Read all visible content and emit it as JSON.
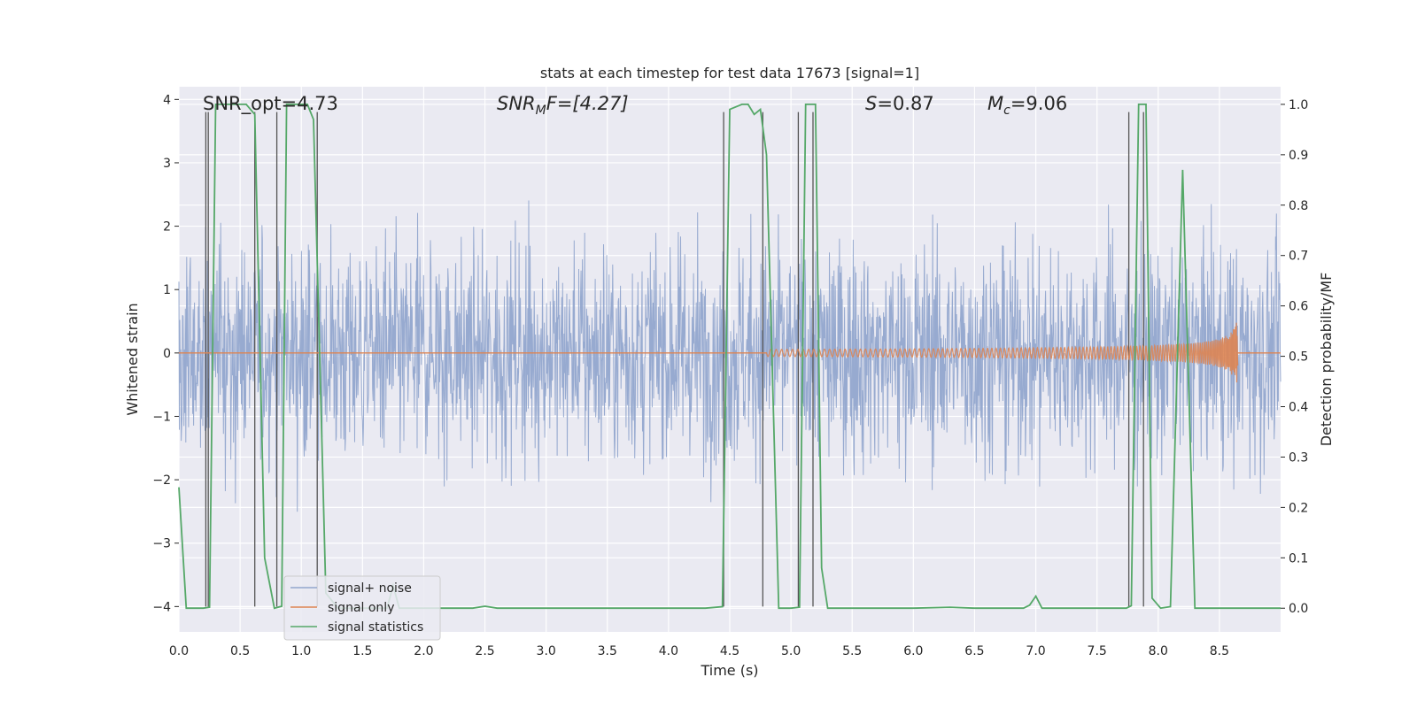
{
  "chart_data": {
    "type": "line",
    "title": "stats at each timestep for test data 17673 [signal=1]",
    "xlabel": "Time (s)",
    "ylabel_left": "Whitened strain",
    "ylabel_right": "Detection probability/MF",
    "xlim": [
      0,
      9.0
    ],
    "ylim_left": [
      -4.4,
      4.2
    ],
    "ylim_right": [
      -0.047,
      1.035
    ],
    "xticks": [
      "0.0",
      "0.5",
      "1.0",
      "1.5",
      "2.0",
      "2.5",
      "3.0",
      "3.5",
      "4.0",
      "4.5",
      "5.0",
      "5.5",
      "6.0",
      "6.5",
      "7.0",
      "7.5",
      "8.0",
      "8.5"
    ],
    "yticks_left": [
      "−4",
      "−3",
      "−2",
      "−1",
      "0",
      "1",
      "2",
      "3",
      "4"
    ],
    "yticks_right": [
      "0.0",
      "0.1",
      "0.2",
      "0.3",
      "0.4",
      "0.5",
      "0.6",
      "0.7",
      "0.8",
      "0.9",
      "1.0"
    ],
    "grid": true,
    "legend_position": "lower-left",
    "annotations": {
      "snr_opt": "SNR_opt=4.73",
      "snr_mf_name": "SNR",
      "snr_mf_sub": "M",
      "snr_mf_rest": "F=[4.27]",
      "s_name": "S",
      "s_rest": "=0.87",
      "mc_name": "M",
      "mc_sub": "c",
      "mc_rest": "=9.06"
    },
    "series": [
      {
        "name": "signal+ noise",
        "color": "#92a6cd",
        "description_axis": "left",
        "band_approx": {
          "typical_amplitude": 1.7,
          "peak_amplitude": 3.9
        }
      },
      {
        "name": "signal only",
        "color": "#dd8452",
        "axis": "left",
        "chirp": {
          "start": 4.8,
          "end": 8.65,
          "final_amplitude": 0.6
        }
      },
      {
        "name": "signal statistics",
        "color": "#55a868",
        "axis": "right",
        "x": [
          0.0,
          0.06,
          0.12,
          0.2,
          0.25,
          0.3,
          0.4,
          0.5,
          0.55,
          0.62,
          0.7,
          0.78,
          0.84,
          0.88,
          0.95,
          1.05,
          1.1,
          1.15,
          1.2,
          1.3,
          1.5,
          1.7,
          1.75,
          1.8,
          1.9,
          2.0,
          2.2,
          2.4,
          2.5,
          2.6,
          3.0,
          3.5,
          4.0,
          4.3,
          4.44,
          4.5,
          4.6,
          4.65,
          4.7,
          4.75,
          4.8,
          4.9,
          5.0,
          5.07,
          5.12,
          5.15,
          5.2,
          5.25,
          5.3,
          5.5,
          6.0,
          6.3,
          6.5,
          6.9,
          6.95,
          7.0,
          7.05,
          7.1,
          7.5,
          7.74,
          7.78,
          7.84,
          7.9,
          7.95,
          8.02,
          8.1,
          8.2,
          8.3,
          8.5,
          8.7,
          9.0
        ],
        "values": [
          0.24,
          0.0,
          0.0,
          0.0,
          0.002,
          1.0,
          1.0,
          1.0,
          1.0,
          0.98,
          0.1,
          0.0,
          0.004,
          1.0,
          1.0,
          1.0,
          0.97,
          0.5,
          0.03,
          0.0,
          0.0,
          0.0,
          0.045,
          0.0,
          0.0,
          0.0,
          0.0,
          0.0,
          0.004,
          0.0,
          0.0,
          0.0,
          0.0,
          0.0,
          0.003,
          0.99,
          1.0,
          1.0,
          0.98,
          0.99,
          0.9,
          0.0,
          0.0,
          0.002,
          1.0,
          1.0,
          1.0,
          0.08,
          0.0,
          0.0,
          0.0,
          0.002,
          0.0,
          0.0,
          0.006,
          0.024,
          0.0,
          0.0,
          0.0,
          0.0,
          0.005,
          1.0,
          1.0,
          0.02,
          0.0,
          0.003,
          0.87,
          0.0,
          0.0,
          0.0,
          0.0
        ]
      }
    ],
    "vertical_markers_x": [
      0.22,
      0.24,
      0.62,
      0.8,
      1.13,
      4.45,
      4.77,
      5.06,
      5.18,
      7.76,
      7.88
    ]
  }
}
